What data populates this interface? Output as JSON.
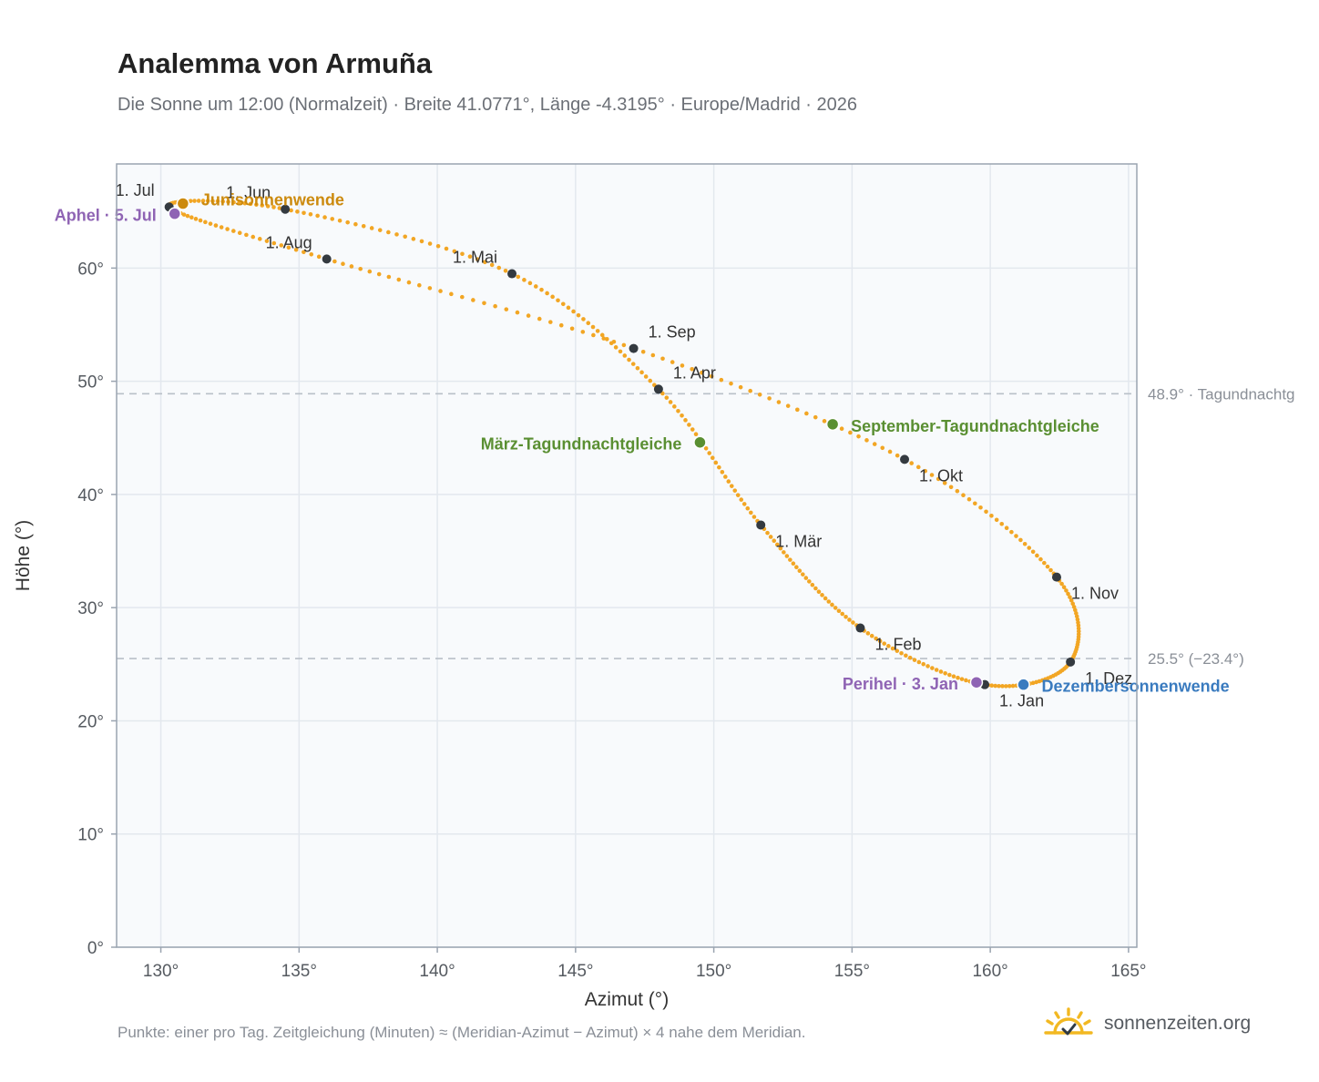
{
  "header": {
    "title": "Analemma von Armuña",
    "subtitle": "Die Sonne um 12:00 (Normalzeit) · Breite 41.0771°, Länge -4.3195° · Europe/Madrid · 2026"
  },
  "footer": {
    "note": "Punkte: einer pro Tag. Zeitgleichung (Minuten) ≈ (Meridian-Azimut − Azimut) × 4 nahe dem Meridian.",
    "brand": "sonnenzeiten.org",
    "brand_icon": "sun-check-icon"
  },
  "colors": {
    "curve": "#f2a624",
    "month_marker": "#343a40",
    "solstice_june": "#cc8a0e",
    "solstice_december": "#3a7bbf",
    "equinox": "#5a8f32",
    "apsis": "#8f64b4",
    "reference_line": "#b9c0c8",
    "plot_background": "#f8fafc"
  },
  "chart_data": {
    "type": "scatter",
    "xlabel": "Azimut (°)",
    "ylabel": "Höhe (°)",
    "xlim": [
      128.4,
      165.3
    ],
    "ylim": [
      0,
      69.2
    ],
    "xticks": [
      "130°",
      "135°",
      "140°",
      "145°",
      "150°",
      "155°",
      "160°",
      "165°"
    ],
    "yticks": [
      "0°",
      "10°",
      "20°",
      "30°",
      "40°",
      "50°",
      "60°"
    ],
    "grid": true,
    "analemma_daily_dots": true,
    "monthly_points": [
      {
        "label": "1. Jan",
        "azimuth": 159.8,
        "altitude": 23.2
      },
      {
        "label": "1. Feb",
        "azimuth": 155.3,
        "altitude": 28.2
      },
      {
        "label": "1. Mär",
        "azimuth": 151.7,
        "altitude": 37.3
      },
      {
        "label": "1. Apr",
        "azimuth": 148.0,
        "altitude": 49.3
      },
      {
        "label": "1. Mai",
        "azimuth": 142.7,
        "altitude": 59.5
      },
      {
        "label": "1. Jun",
        "azimuth": 134.5,
        "altitude": 65.2
      },
      {
        "label": "1. Jul",
        "azimuth": 130.3,
        "altitude": 65.4
      },
      {
        "label": "1. Aug",
        "azimuth": 136.0,
        "altitude": 60.8
      },
      {
        "label": "1. Sep",
        "azimuth": 147.1,
        "altitude": 52.9
      },
      {
        "label": "1. Okt",
        "azimuth": 156.9,
        "altitude": 43.1
      },
      {
        "label": "1. Nov",
        "azimuth": 162.4,
        "altitude": 32.7
      },
      {
        "label": "1. Dez",
        "azimuth": 162.9,
        "altitude": 25.2
      }
    ],
    "special_points": [
      {
        "key": "june",
        "label": "Junisonnenwende",
        "azimuth": 130.8,
        "altitude": 65.7
      },
      {
        "key": "december",
        "label": "Dezembersonnenwende",
        "azimuth": 161.2,
        "altitude": 23.2
      },
      {
        "key": "march",
        "label": "März-Tagundnachtgleiche",
        "azimuth": 149.5,
        "altitude": 44.6
      },
      {
        "key": "september",
        "label": "September-Tagundnachtgleiche",
        "azimuth": 154.3,
        "altitude": 46.2
      },
      {
        "key": "aphelion",
        "label": "Aphel · 5. Jul",
        "azimuth": 130.5,
        "altitude": 64.8
      },
      {
        "key": "perihelion",
        "label": "Perihel · 3. Jan",
        "azimuth": 159.5,
        "altitude": 23.4
      }
    ],
    "reference_lines": [
      {
        "altitude": 48.9,
        "label": "48.9° · Tagundnachtg"
      },
      {
        "altitude": 25.5,
        "label": "25.5° (−23.4°)"
      }
    ]
  }
}
